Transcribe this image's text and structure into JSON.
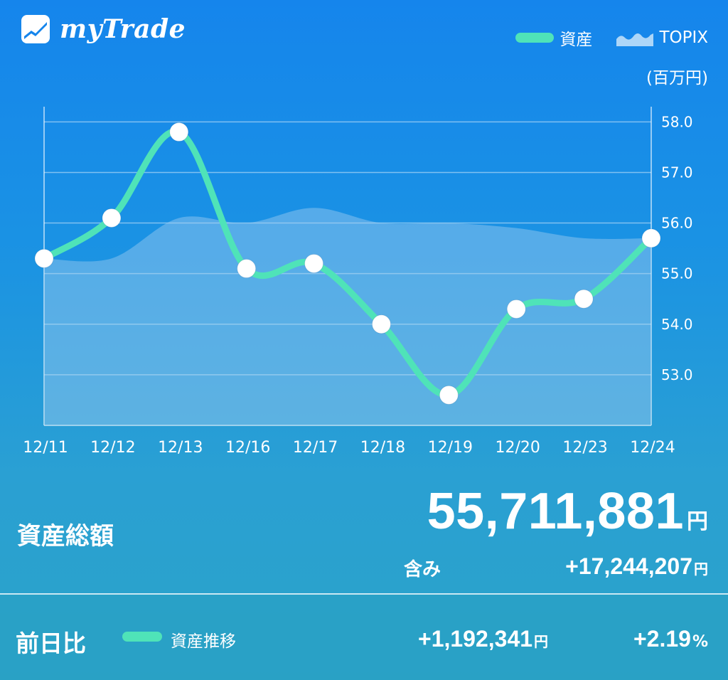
{
  "app": {
    "name": "myTrade"
  },
  "legend": {
    "asset_label": "資産",
    "index_label": "TOPIX"
  },
  "unit_label": "(百万円)",
  "summary": {
    "total_label": "資産総額",
    "total_value": "55,711,881",
    "total_unit": "円",
    "gain_label": "含み",
    "gain_value": "+17,244,207",
    "gain_unit": "円"
  },
  "daily": {
    "label": "前日比",
    "trend_label": "資産推移",
    "change_value": "+1,192,341",
    "change_unit": "円",
    "change_pct": "+2.19",
    "pct_unit": "%"
  },
  "colors": {
    "asset_line": "#4fe3b8",
    "marker": "#ffffff",
    "topix_area": "rgba(160, 205, 240, 0.45)",
    "background_top": "#1585ec",
    "background_bottom": "#2aa3c8"
  },
  "chart_data": {
    "type": "line",
    "categories": [
      "12/11",
      "12/12",
      "12/13",
      "12/16",
      "12/17",
      "12/18",
      "12/19",
      "12/20",
      "12/23",
      "12/24"
    ],
    "series": [
      {
        "name": "資産",
        "values": [
          55.3,
          56.1,
          57.8,
          55.1,
          55.2,
          54.0,
          52.6,
          54.3,
          54.5,
          55.7
        ]
      },
      {
        "name": "TOPIX",
        "values": [
          55.3,
          55.3,
          56.1,
          56.0,
          56.3,
          56.0,
          56.0,
          55.9,
          55.7,
          55.7
        ]
      }
    ],
    "ylim": [
      52.0,
      58.3
    ],
    "yticks": [
      53.0,
      54.0,
      55.0,
      56.0,
      57.0,
      58.0
    ],
    "y_axis_position": "right",
    "grid": true
  }
}
